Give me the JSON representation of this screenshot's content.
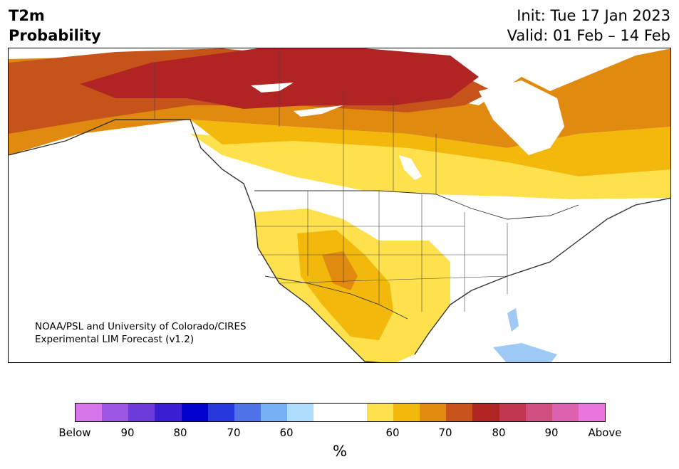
{
  "header": {
    "title_line1": "T2m",
    "title_line2": "Probability",
    "init_line": "Init: Tue 17 Jan 2023",
    "valid_line": "Valid: 01 Feb – 14 Feb"
  },
  "credit": {
    "line1": "NOAA/PSL and University of Colorado/CIRES",
    "line2": "Experimental LIM Forecast (v1.2)"
  },
  "colorbar": {
    "colors": [
      "#d674ea",
      "#9c55e0",
      "#6d3bd9",
      "#3a1ed3",
      "#0000cd",
      "#2438db",
      "#4f72e8",
      "#76b0f5",
      "#addcfc",
      "#ffffff",
      "#ffffff",
      "#ffe14d",
      "#f2b80b",
      "#e08a10",
      "#c6541a",
      "#b12424",
      "#c13651",
      "#cf5080",
      "#dc62b0",
      "#ea76dc"
    ],
    "tick_labels": [
      "Below",
      "90",
      "80",
      "70",
      "60",
      "60",
      "70",
      "80",
      "90",
      "Above"
    ],
    "unit_label": "%"
  },
  "map": {
    "regions": [
      {
        "name": "far-north-canada",
        "category": "above-80"
      },
      {
        "name": "northern-canada-band",
        "category": "above-70"
      },
      {
        "name": "central-canada-band",
        "category": "above-60"
      },
      {
        "name": "southern-canada-band",
        "category": "above-50"
      },
      {
        "name": "southwest-us",
        "category": "above-60"
      },
      {
        "name": "florida-cuba",
        "category": "below-60"
      }
    ]
  }
}
